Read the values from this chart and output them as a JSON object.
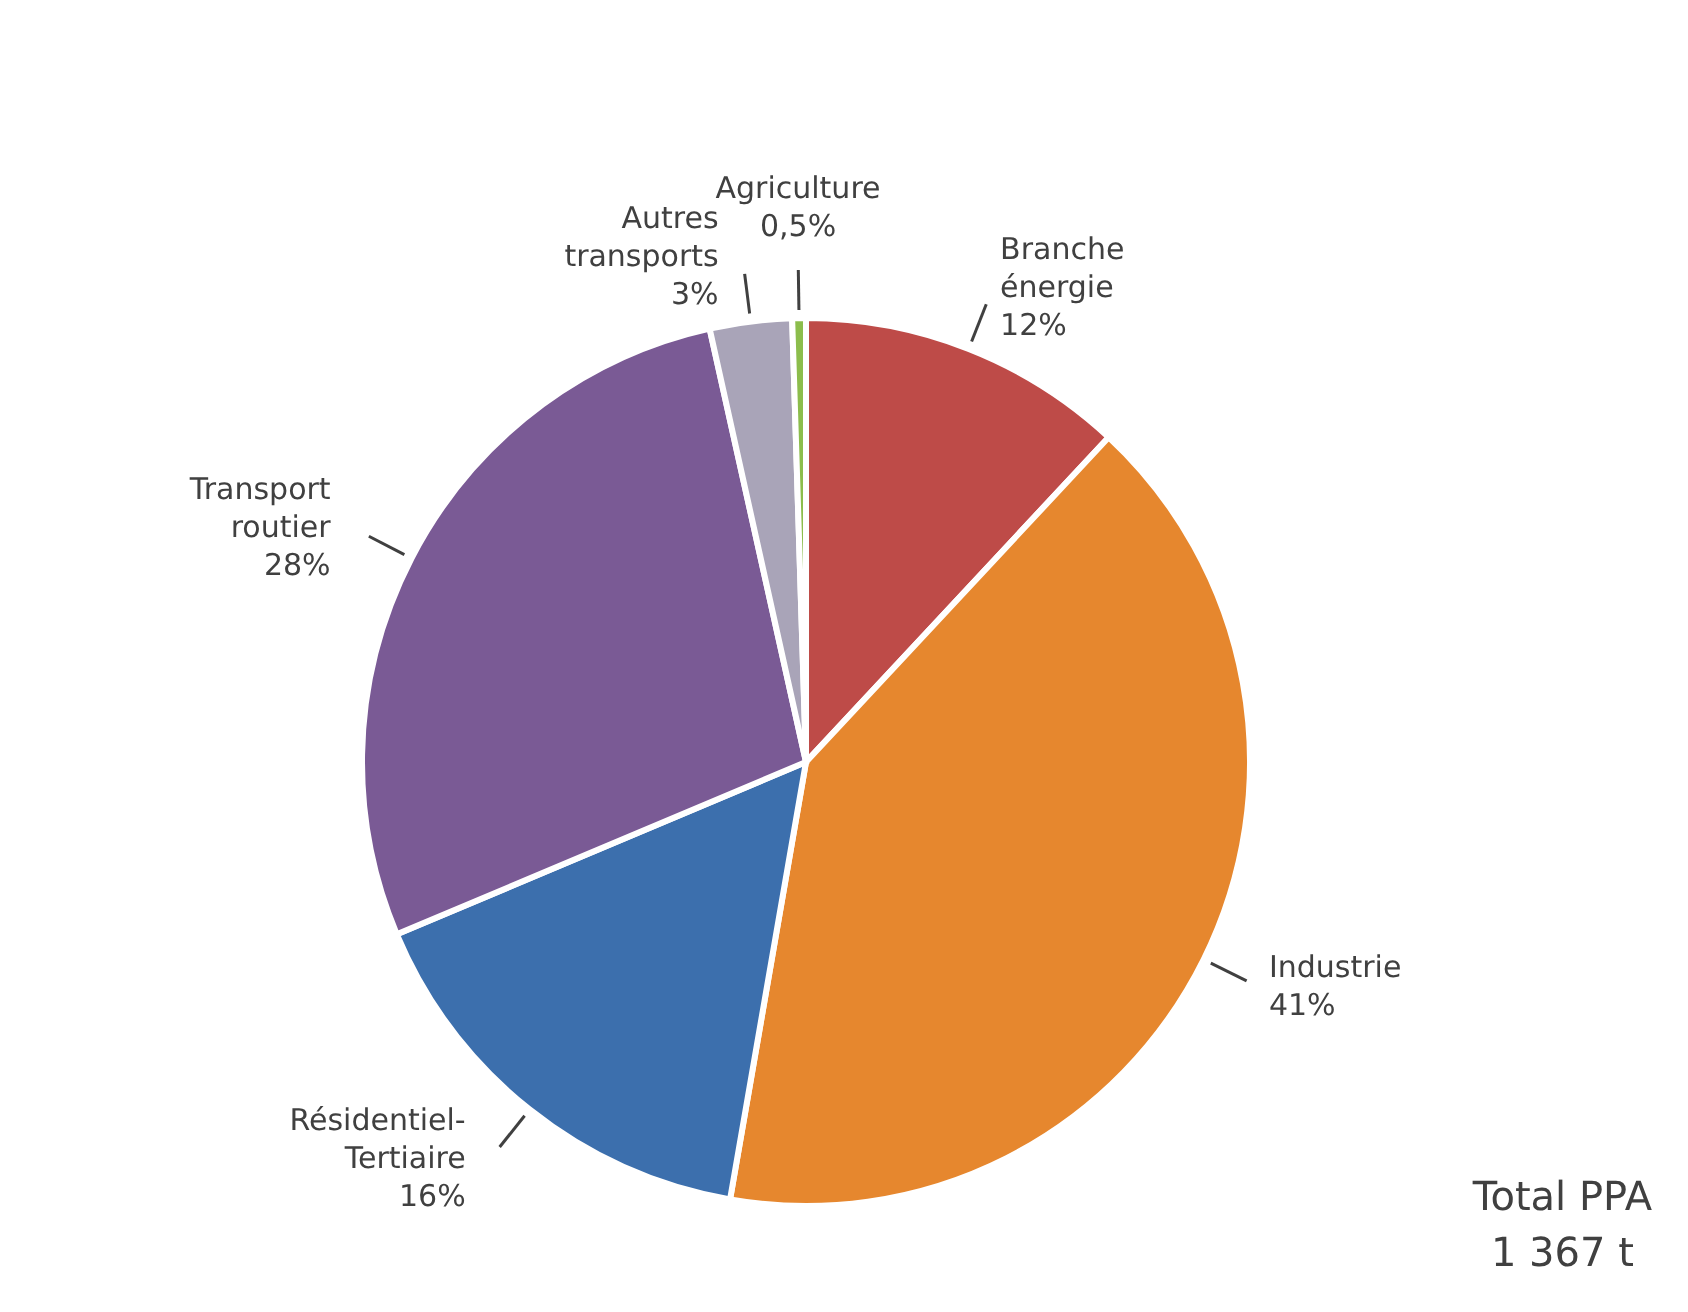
{
  "chart_data": {
    "type": "pie",
    "categories": [
      "Branche énergie",
      "Industrie",
      "Résidentiel-Tertiaire",
      "Transport routier",
      "Autres transports",
      "Agriculture"
    ],
    "values": [
      12,
      41,
      16,
      28,
      3,
      0.5
    ],
    "value_labels": [
      "12%",
      "41%",
      "16%",
      "28%",
      "3%",
      "0,5%"
    ],
    "colors": [
      "#be4b48",
      "#e6872e",
      "#3c6fad",
      "#7a5a95",
      "#a9a4b8",
      "#8cbd4c"
    ],
    "annotations": [
      "Total PPA",
      "1 367 t"
    ]
  }
}
